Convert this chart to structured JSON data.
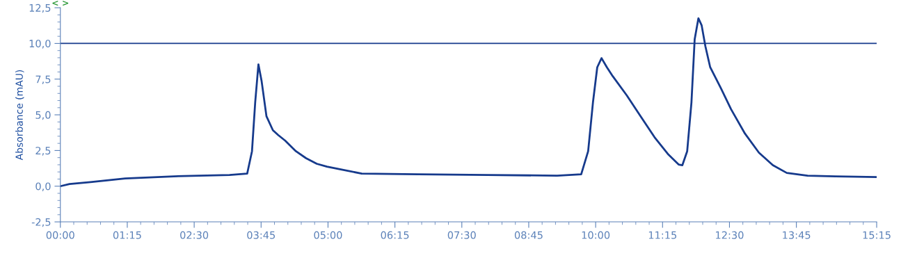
{
  "chart_data": {
    "type": "line",
    "ylabel": "Absorbance (mAU)",
    "annotations": [
      "< >"
    ],
    "x": [
      0,
      0.17,
      0.56,
      1.21,
      2.12,
      3.16,
      3.49,
      3.58,
      3.64,
      3.7,
      3.76,
      3.85,
      3.97,
      4.07,
      4.2,
      4.4,
      4.59,
      4.79,
      4.98,
      5.24,
      5.63,
      6.68,
      7.98,
      9.28,
      9.73,
      9.86,
      9.95,
      10.03,
      10.11,
      10.21,
      10.32,
      10.58,
      10.84,
      11.1,
      11.36,
      11.55,
      11.62,
      11.71,
      11.79,
      11.85,
      11.92,
      11.98,
      12.05,
      12.14,
      12.34,
      12.53,
      12.79,
      13.05,
      13.31,
      13.57,
      13.96,
      14.48,
      15.25
    ],
    "series": [
      {
        "color": "#163a8c",
        "values": [
          0,
          0.15,
          0.29,
          0.54,
          0.69,
          0.78,
          0.88,
          2.45,
          5.88,
          8.53,
          7.35,
          4.9,
          3.92,
          3.58,
          3.19,
          2.45,
          1.96,
          1.57,
          1.37,
          1.18,
          0.88,
          0.83,
          0.78,
          0.74,
          0.83,
          2.45,
          5.88,
          8.33,
          8.97,
          8.33,
          7.7,
          6.37,
          4.9,
          3.43,
          2.21,
          1.52,
          1.47,
          2.45,
          5.88,
          10.29,
          11.76,
          11.27,
          9.8,
          8.33,
          6.86,
          5.39,
          3.68,
          2.35,
          1.47,
          0.93,
          0.74,
          0.69,
          0.64
        ]
      }
    ],
    "xlim": [
      0,
      15.25
    ],
    "xticks": [
      {
        "value": 0,
        "label": "00:00"
      },
      {
        "value": 1.25,
        "label": "01:15"
      },
      {
        "value": 2.5,
        "label": "02:30"
      },
      {
        "value": 3.75,
        "label": "03:45"
      },
      {
        "value": 5,
        "label": "05:00"
      },
      {
        "value": 6.25,
        "label": "06:15"
      },
      {
        "value": 7.5,
        "label": "07:30"
      },
      {
        "value": 8.75,
        "label": "08:45"
      },
      {
        "value": 10,
        "label": "10:00"
      },
      {
        "value": 11.25,
        "label": "11:15"
      },
      {
        "value": 12.5,
        "label": "12:30"
      },
      {
        "value": 13.75,
        "label": "13:45"
      },
      {
        "value": 15.25,
        "label": "15:15"
      }
    ],
    "ylim": [
      -2.5,
      12.5
    ],
    "yticks": [
      {
        "value": -2.5,
        "label": "-2,5"
      },
      {
        "value": 0,
        "label": "0,0"
      },
      {
        "value": 2.5,
        "label": "2,5"
      },
      {
        "value": 5,
        "label": "5,0"
      },
      {
        "value": 7.5,
        "label": "7,5"
      },
      {
        "value": 10,
        "label": "10,0"
      },
      {
        "value": 12.5,
        "label": "12,5"
      }
    ],
    "ref_lines": [
      {
        "axis": "y",
        "value": 10,
        "color": "#163a8c"
      }
    ],
    "grid": false,
    "legend": false,
    "marker": "none",
    "line_style": "solid"
  }
}
